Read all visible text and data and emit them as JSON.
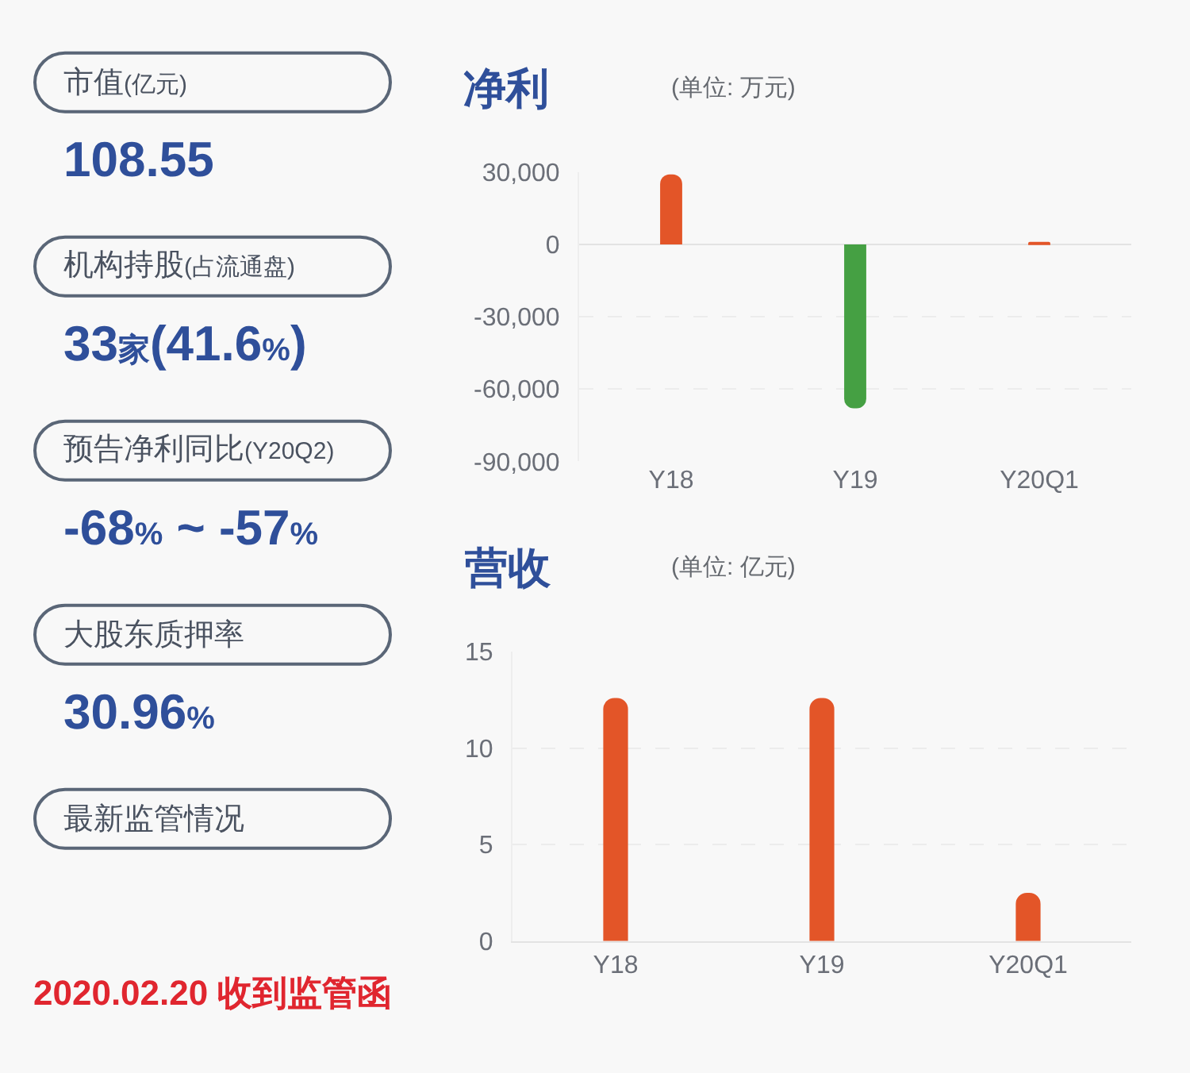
{
  "chart_data": [
    {
      "type": "other",
      "annotations": [
        "市值(亿元)",
        "108.55",
        "机构持股(占流通盘)",
        "33家(41.6%)",
        "预告净利同比(Y20Q2)",
        "-68% ~ -57%",
        "大股东质押率",
        "30.96%",
        "最新监管情况",
        "2020.02.20 收到监管函"
      ]
    },
    {
      "type": "bar",
      "title": "净利",
      "subtitle": "(单位: 万元)",
      "categories": [
        "Y18",
        "Y19",
        "Y20Q1"
      ],
      "values": [
        29000,
        -68000,
        1000
      ],
      "colors": [
        "#e35528",
        "#45a043",
        "#e35528"
      ],
      "ylim": [
        -90000,
        30000
      ],
      "yticks": [
        {
          "value": 30000,
          "label": "30,000"
        },
        0,
        {
          "value": -30000,
          "label": "-30,000"
        },
        {
          "value": -60000,
          "label": "-60,000"
        },
        {
          "value": -90000,
          "label": "-90,000"
        }
      ],
      "grid": "y"
    },
    {
      "type": "bar",
      "title": "营收",
      "subtitle": "(单位: 亿元)",
      "categories": [
        "Y18",
        "Y19",
        "Y20Q1"
      ],
      "values": [
        12.6,
        12.6,
        2.5
      ],
      "colors": [
        "#e35528",
        "#e35528",
        "#e35528"
      ],
      "ylim": [
        0,
        15
      ],
      "yticks": [
        0,
        5,
        10,
        15
      ],
      "grid": "y"
    }
  ]
}
